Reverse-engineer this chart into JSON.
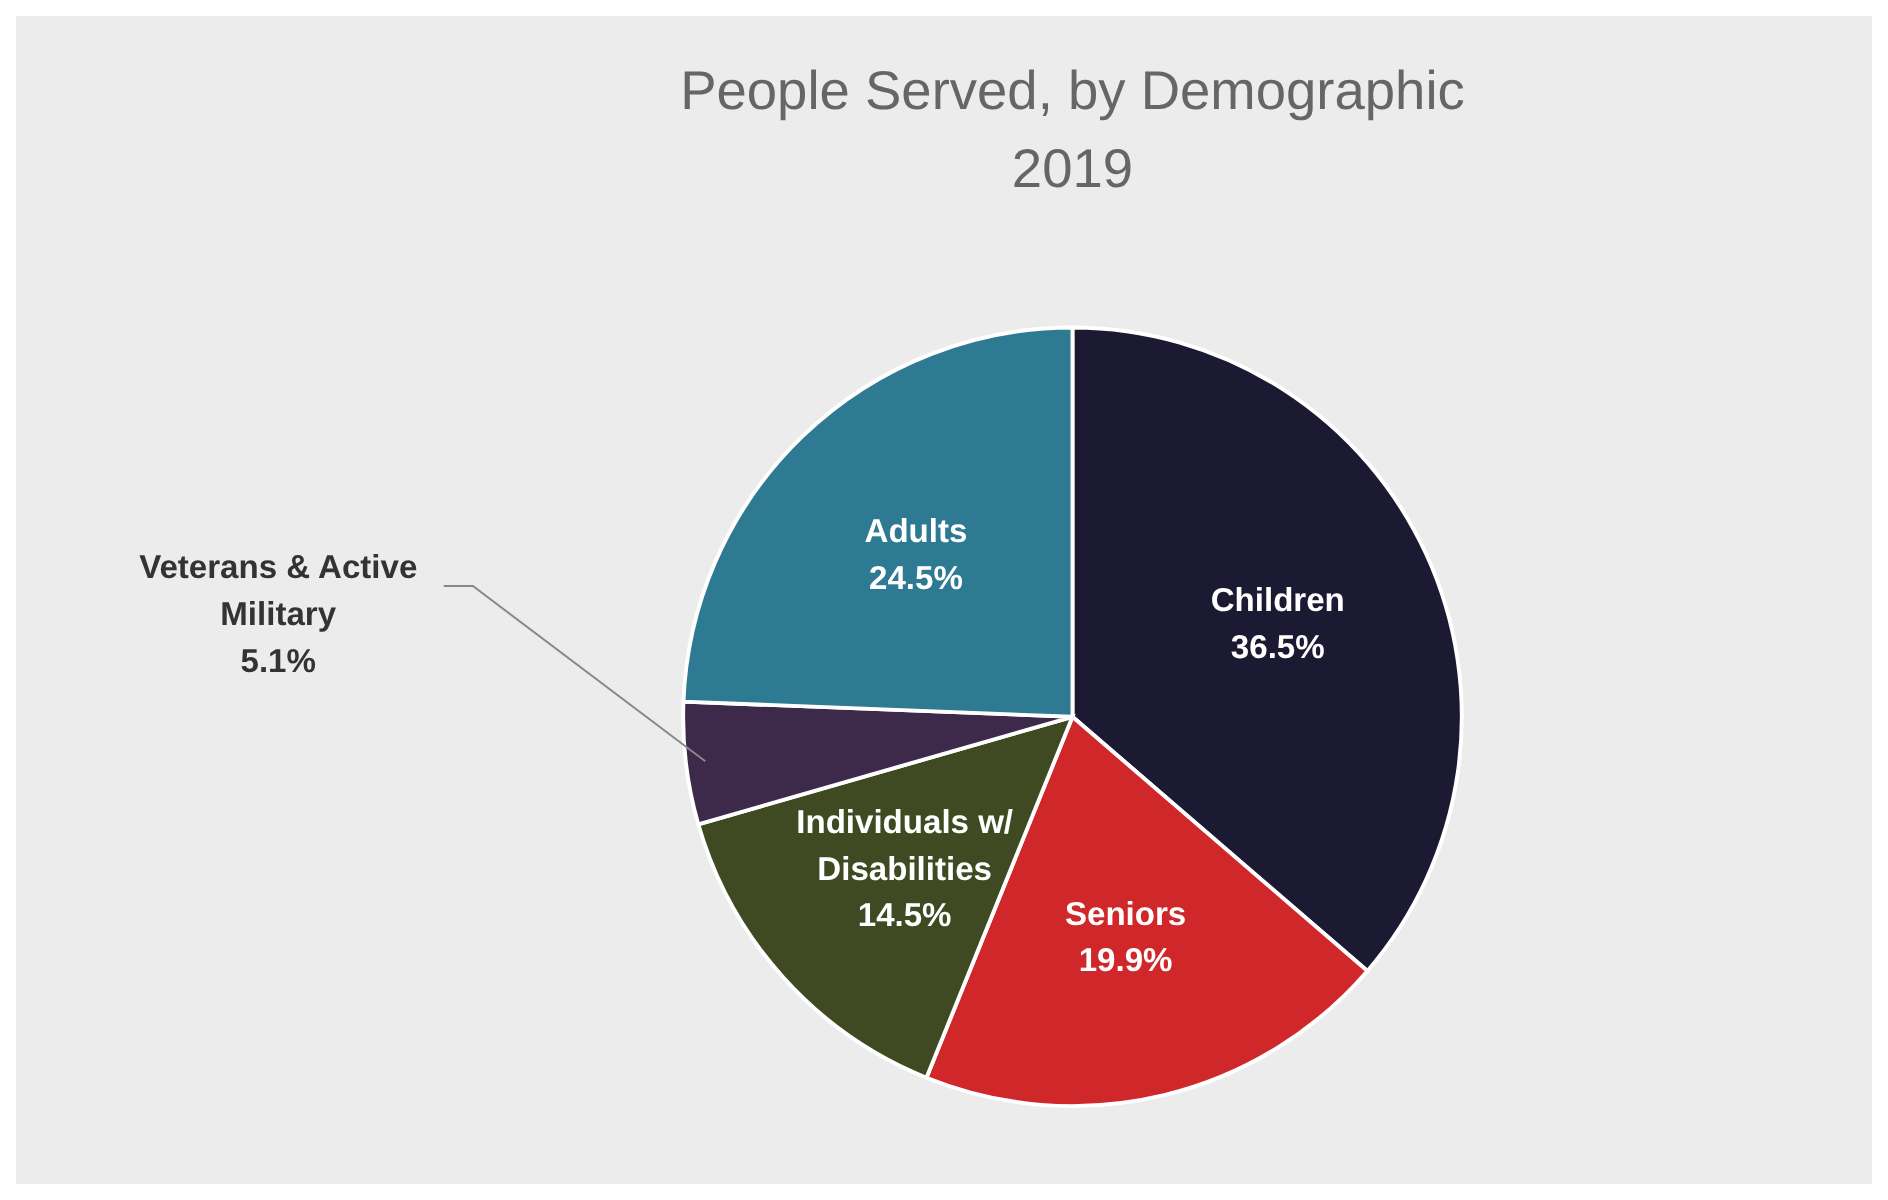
{
  "chart_data": {
    "type": "pie",
    "title": "People Served, by Demographic",
    "subtitle": "2019",
    "categories": [
      "Children",
      "Seniors",
      "Individuals w/ Disabilities",
      "Veterans & Active Military",
      "Adults"
    ],
    "values": [
      36.5,
      19.9,
      14.5,
      5.1,
      24.5
    ],
    "colors": [
      "#1c1a33",
      "#d0282a",
      "#3f4a22",
      "#3d2a4a",
      "#2e7a92"
    ],
    "value_labels": [
      "36.5%",
      "19.9%",
      "14.5%",
      "5.1%",
      "24.5%"
    ],
    "legend": false
  }
}
